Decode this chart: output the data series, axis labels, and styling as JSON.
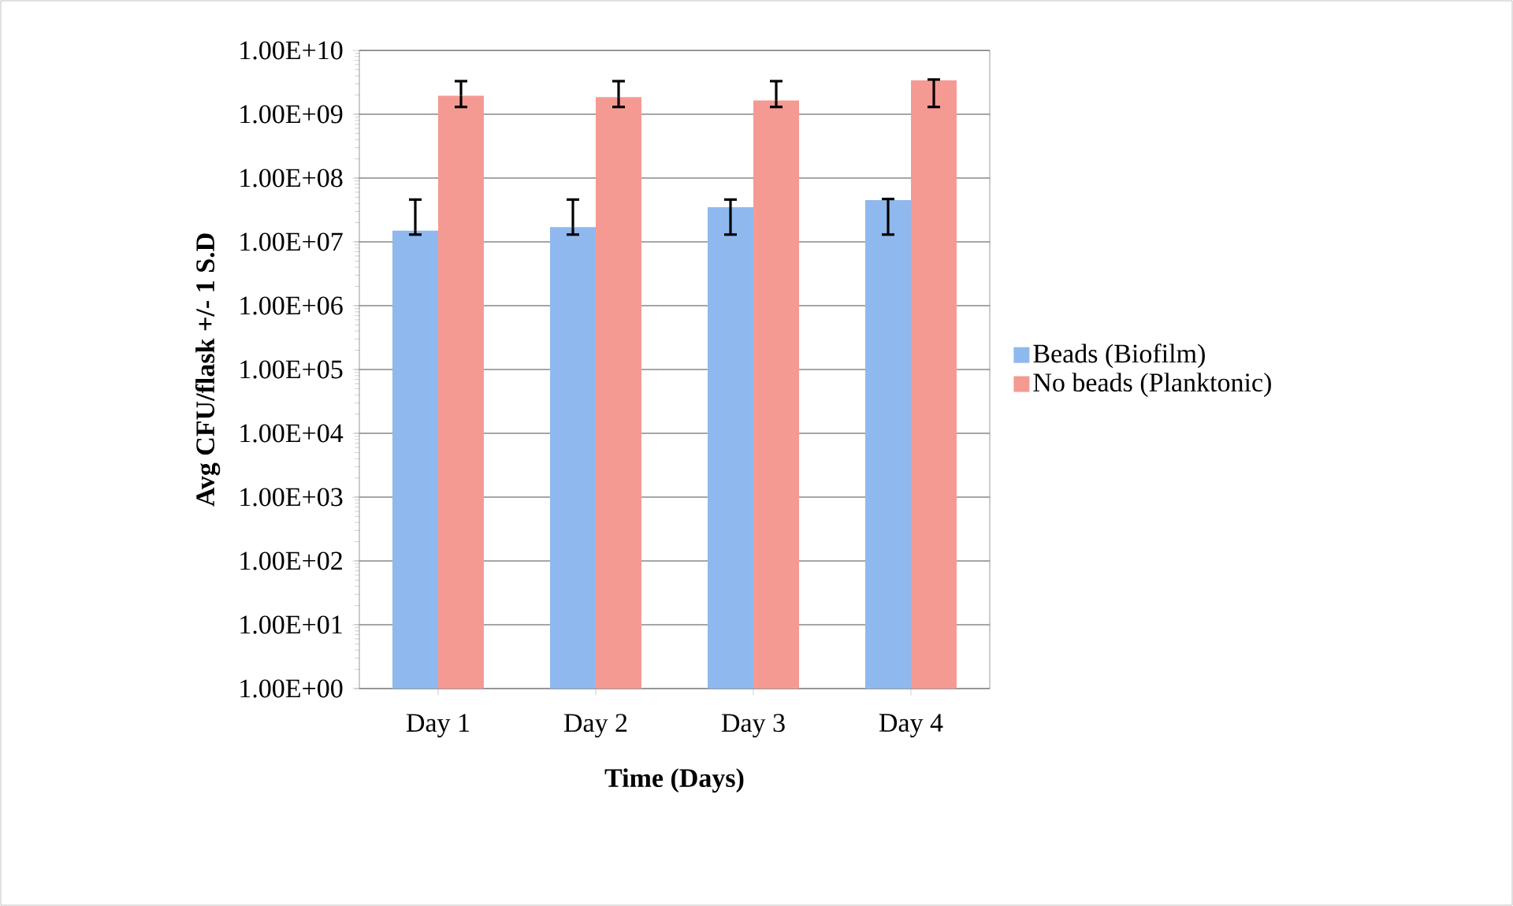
{
  "chart_data": {
    "type": "bar",
    "xlabel": "Time (Days)",
    "ylabel": "Avg CFU/flask +/- 1 S.D",
    "categories": [
      "Day 1",
      "Day 2",
      "Day 3",
      "Day 4"
    ],
    "series": [
      {
        "name": "Beads (Biofilm)",
        "color": "#8fb9ee",
        "values": [
          15000000,
          17000000,
          35000000,
          45000000
        ],
        "errors": [
          [
            13000000,
            46000000
          ],
          [
            13000000,
            46000000
          ],
          [
            13000000,
            46000000
          ],
          [
            13000000,
            47000000
          ]
        ]
      },
      {
        "name": "No beads (Planktonic)",
        "color": "#f59a93",
        "values": [
          1950000000,
          1850000000,
          1650000000,
          3400000000
        ],
        "errors": [
          [
            1300000000,
            3300000000
          ],
          [
            1300000000,
            3300000000
          ],
          [
            1300000000,
            3300000000
          ],
          [
            1300000000,
            3500000000
          ]
        ]
      }
    ],
    "log": "y",
    "ylim": [
      1,
      10000000000
    ],
    "yticks": [
      {
        "value": 1,
        "label": "1.00E+00"
      },
      {
        "value": 10,
        "label": "1.00E+01"
      },
      {
        "value": 100,
        "label": "1.00E+02"
      },
      {
        "value": 1000,
        "label": "1.00E+03"
      },
      {
        "value": 10000,
        "label": "1.00E+04"
      },
      {
        "value": 100000,
        "label": "1.00E+05"
      },
      {
        "value": 1000000,
        "label": "1.00E+06"
      },
      {
        "value": 10000000,
        "label": "1.00E+07"
      },
      {
        "value": 100000000,
        "label": "1.00E+08"
      },
      {
        "value": 1000000000,
        "label": "1.00E+09"
      },
      {
        "value": 10000000000,
        "label": "1.00E+10"
      }
    ],
    "grid": "y",
    "legend": "right"
  }
}
